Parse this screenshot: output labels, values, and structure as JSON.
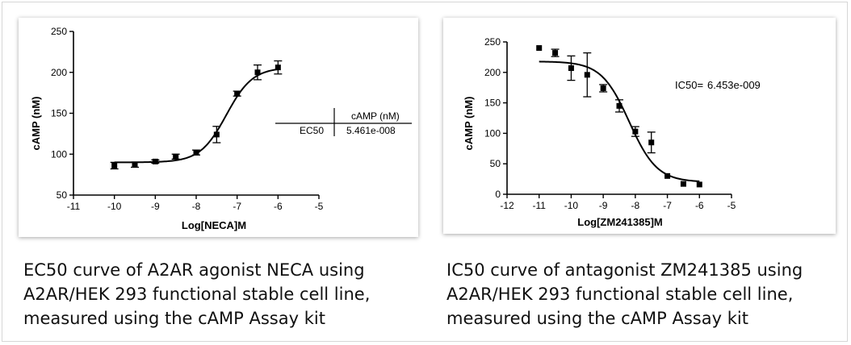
{
  "chart_data": [
    {
      "type": "scatter",
      "xlabel": "Log[NECA]M",
      "ylabel": "cAMP (nM)",
      "xlim": [
        -11,
        -5
      ],
      "ylim": [
        50,
        250
      ],
      "xticks": [
        -11,
        -10,
        -9,
        -8,
        -7,
        -6,
        -5
      ],
      "yticks": [
        50,
        100,
        150,
        200,
        250
      ],
      "points": [
        {
          "x": -10.0,
          "y": 86,
          "err": 4
        },
        {
          "x": -9.5,
          "y": 87,
          "err": 3
        },
        {
          "x": -9.0,
          "y": 91,
          "err": 2
        },
        {
          "x": -8.5,
          "y": 97,
          "err": 3
        },
        {
          "x": -8.0,
          "y": 102,
          "err": 3
        },
        {
          "x": -7.5,
          "y": 124,
          "err": 10
        },
        {
          "x": -7.0,
          "y": 174,
          "err": 3
        },
        {
          "x": -6.5,
          "y": 200,
          "err": 9
        },
        {
          "x": -6.0,
          "y": 206,
          "err": 8
        }
      ],
      "fit": {
        "bottom": 90,
        "top": 206,
        "log_ec50": -7.2626,
        "hill": 1.35,
        "x_range": [
          -10,
          -6
        ]
      },
      "results_table": {
        "column_header": "cAMP (nM)",
        "row_label": "EC50",
        "row_value": "5.461e-008"
      }
    },
    {
      "type": "scatter",
      "xlabel": "Log[ZM241385]M",
      "ylabel": "cAMP (nM)",
      "xlim": [
        -12,
        -5
      ],
      "ylim": [
        0,
        250
      ],
      "xticks": [
        -12,
        -11,
        -10,
        -9,
        -8,
        -7,
        -6,
        -5
      ],
      "yticks": [
        0,
        50,
        100,
        150,
        200,
        250
      ],
      "points": [
        {
          "x": -11.0,
          "y": 240,
          "err": 0
        },
        {
          "x": -10.5,
          "y": 232,
          "err": 6
        },
        {
          "x": -10.0,
          "y": 207,
          "err": 20
        },
        {
          "x": -9.5,
          "y": 196,
          "err": 36
        },
        {
          "x": -9.0,
          "y": 174,
          "err": 6
        },
        {
          "x": -8.5,
          "y": 145,
          "err": 10
        },
        {
          "x": -8.0,
          "y": 103,
          "err": 8
        },
        {
          "x": -7.5,
          "y": 85,
          "err": 17
        },
        {
          "x": -7.0,
          "y": 30,
          "err": 0
        },
        {
          "x": -6.5,
          "y": 17,
          "err": 0
        },
        {
          "x": -6.0,
          "y": 16,
          "err": 0
        }
      ],
      "fit": {
        "top": 218,
        "bottom": 20,
        "log_ic50": -8.19,
        "hill": -1.0,
        "x_range": [
          -11,
          -6
        ]
      },
      "annotation_label": "IC50=",
      "annotation_value": "6.453e-009"
    }
  ],
  "captions": {
    "left": "EC50 curve of A2AR agonist NECA using\nA2AR/HEK 293 functional stable cell line,\nmeasured using the cAMP Assay kit",
    "right": "IC50 curve of antagonist ZM241385 using\nA2AR/HEK 293 functional stable cell line,\nmeasured using the cAMP Assay kit"
  }
}
